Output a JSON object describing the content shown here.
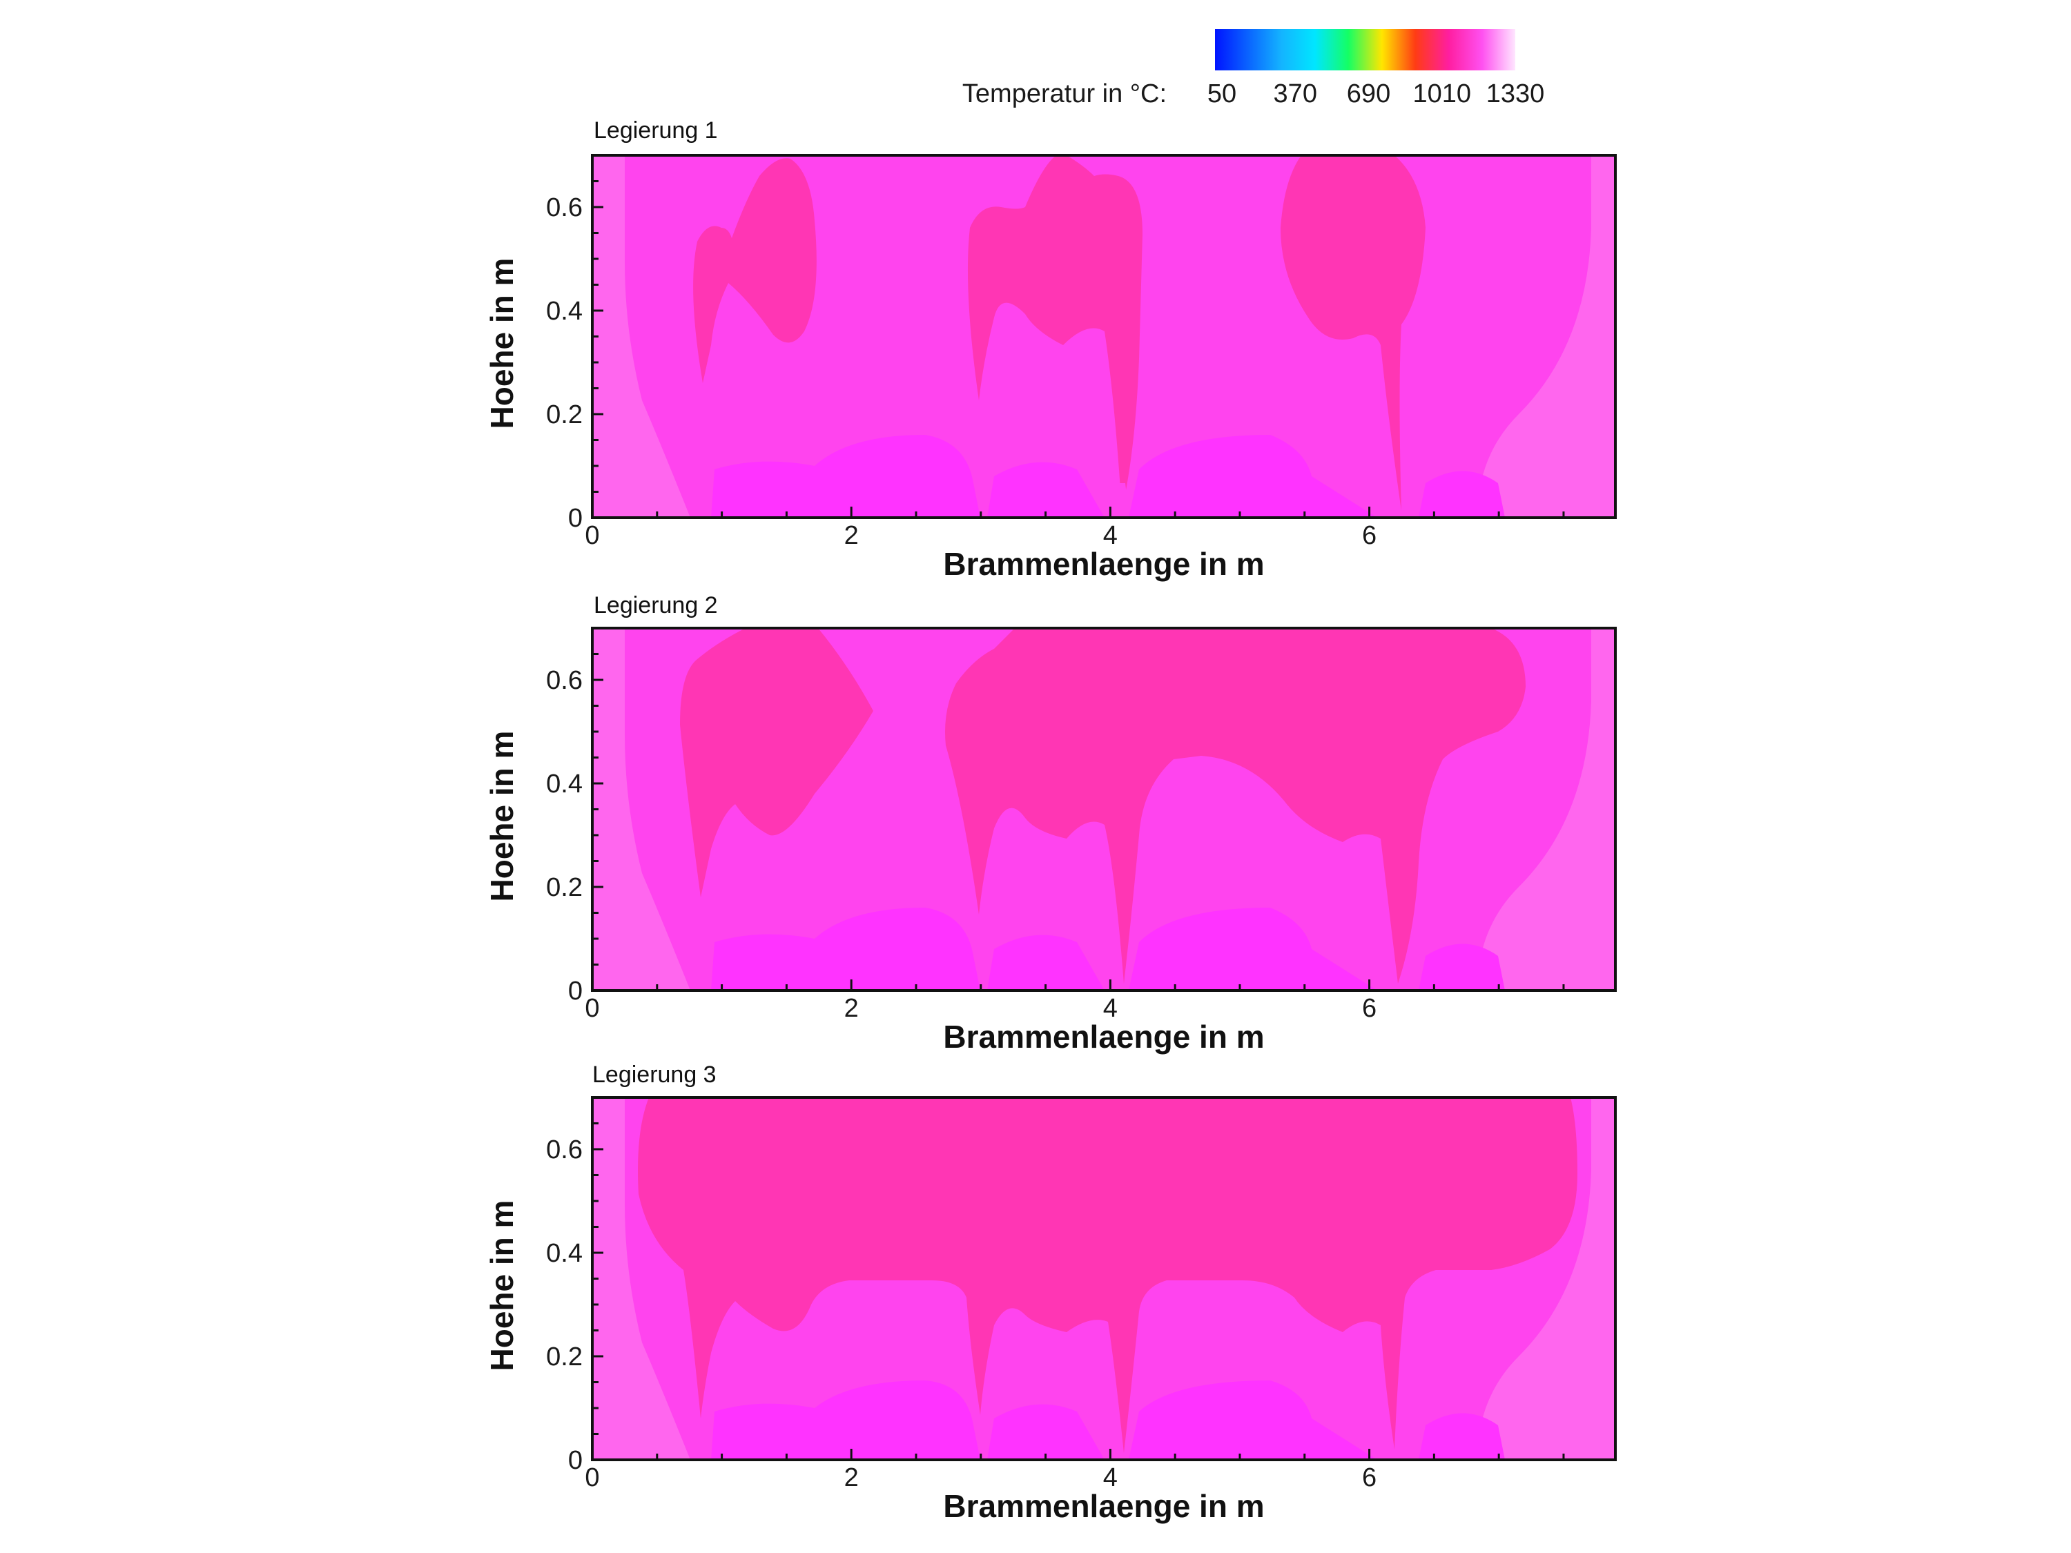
{
  "colorbar": {
    "label": "Temperatur in °C:",
    "tick_values": [
      "50",
      "370",
      "690",
      "1010",
      "1330"
    ],
    "colors": [
      "#0014ff",
      "#0a64ff",
      "#14b4ff",
      "#00e6ff",
      "#14ff64",
      "#ffe600",
      "#ff3c14",
      "#ff1ea0",
      "#ff50f0",
      "#ffe6ff"
    ]
  },
  "chart_data": [
    {
      "type": "heatmap",
      "title": "Legierung 1",
      "xlabel": "Brammenlaenge in m",
      "ylabel": "Hoehe in m",
      "xlim": [
        0,
        7.9
      ],
      "ylim": [
        0,
        0.7
      ],
      "x_ticks": [
        "0",
        "2",
        "4",
        "6"
      ],
      "y_ticks": [
        "0",
        "0.2",
        "0.4",
        "0.6"
      ],
      "colors": {
        "outer": "#ff66ee",
        "mid": "#ff44ee",
        "core": "#ff36b4",
        "bottom": "#ff33ff"
      }
    },
    {
      "type": "heatmap",
      "title": "Legierung 2",
      "xlabel": "Brammenlaenge in m",
      "ylabel": "Hoehe in m",
      "xlim": [
        0,
        7.9
      ],
      "ylim": [
        0,
        0.7
      ],
      "x_ticks": [
        "0",
        "2",
        "4",
        "6"
      ],
      "y_ticks": [
        "0",
        "0.2",
        "0.4",
        "0.6"
      ],
      "colors": {
        "outer": "#ff66ee",
        "mid": "#ff44ee",
        "core": "#ff36b4",
        "bottom": "#ff33ff"
      }
    },
    {
      "type": "heatmap",
      "title": "Legierung 3",
      "xlabel": "Brammenlaenge in m",
      "ylabel": "Hoehe in m",
      "xlim": [
        0,
        7.9
      ],
      "ylim": [
        0,
        0.7
      ],
      "x_ticks": [
        "0",
        "2",
        "4",
        "6"
      ],
      "y_ticks": [
        "0",
        "0.2",
        "0.4",
        "0.6"
      ],
      "colors": {
        "outer": "#ff66ee",
        "mid": "#ff44ee",
        "core": "#ff36b4",
        "bottom": "#ff33ff"
      }
    }
  ]
}
